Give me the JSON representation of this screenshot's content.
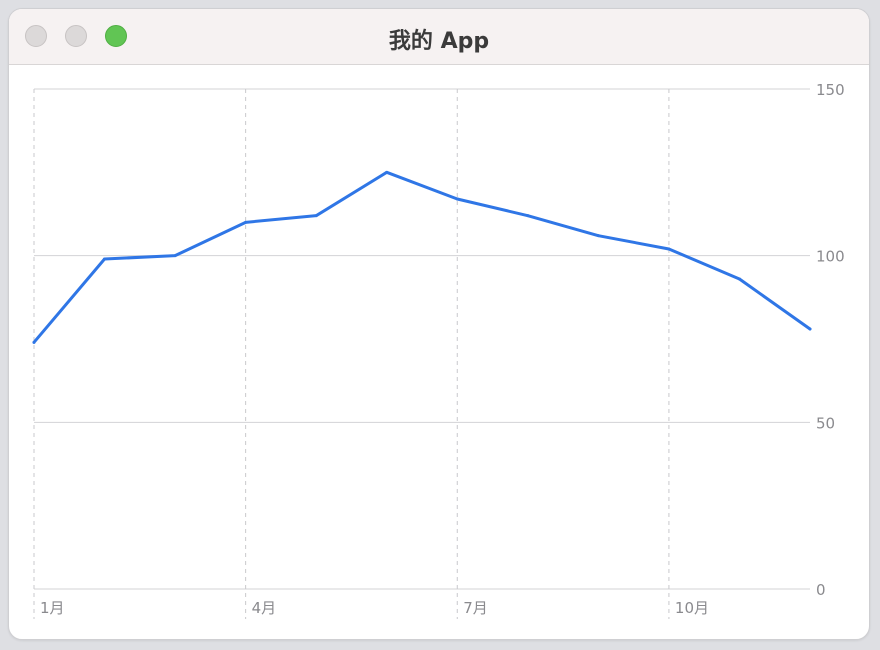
{
  "window": {
    "title": "我的 App",
    "accent_color": "#2f76e6",
    "traffic_lights": [
      "close-button",
      "minimize-button",
      "zoom-button"
    ]
  },
  "chart_data": {
    "type": "line",
    "title": "",
    "xlabel": "",
    "ylabel": "",
    "x": [
      1,
      2,
      3,
      4,
      5,
      6,
      7,
      8,
      9,
      10,
      11,
      12
    ],
    "x_tick_values": [
      1,
      4,
      7,
      10
    ],
    "x_tick_labels": [
      "1月",
      "4月",
      "7月",
      "10月"
    ],
    "xlim": [
      1,
      12
    ],
    "y_ticks": [
      0,
      50,
      100,
      150
    ],
    "y_tick_labels": [
      "0",
      "50",
      "100",
      "150"
    ],
    "ylim": [
      0,
      150
    ],
    "y_axis_side": "right",
    "grid": "on",
    "series": [
      {
        "name": "",
        "color": "#2f76e6",
        "values": [
          74,
          99,
          100,
          110,
          112,
          125,
          117,
          112,
          106,
          102,
          93,
          78
        ]
      }
    ]
  }
}
